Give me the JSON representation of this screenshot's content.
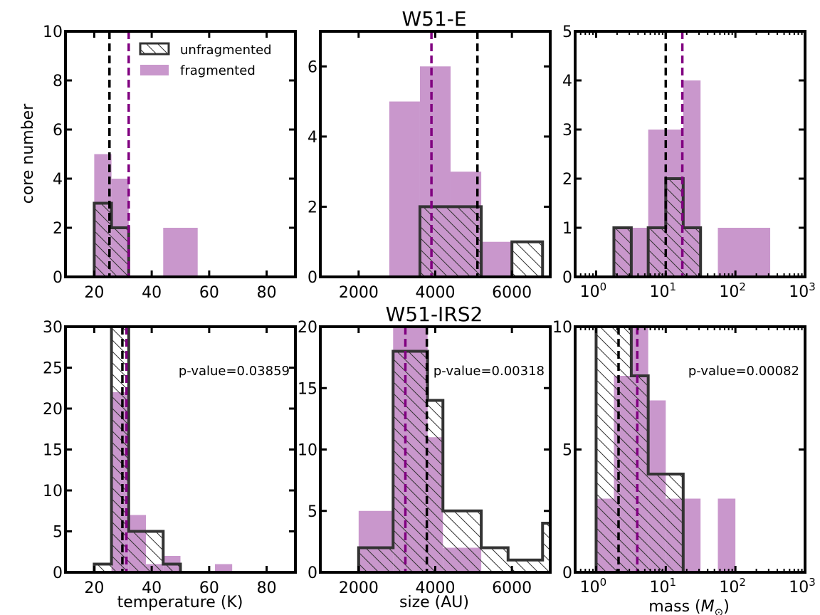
{
  "colors": {
    "fragmented_fill": "#c997cc",
    "unfragmented_edge": "#333333",
    "fragmented_median": "#800080",
    "unfragmented_median": "#000000"
  },
  "legend": {
    "unfragmented": "unfragmented",
    "fragmented": "fragmented"
  },
  "rows": [
    {
      "title": "W51-E",
      "ylabel": "core number"
    },
    {
      "title": "W51-IRS2",
      "ylabel": ""
    }
  ],
  "columns": [
    {
      "xlabel": "temperature (K)"
    },
    {
      "xlabel": "size (AU)"
    },
    {
      "xlabel": "mass ($M_\\odot$)"
    }
  ],
  "chart_data": [
    {
      "id": "w51e-temperature",
      "type": "bar",
      "row": 0,
      "col": 0,
      "xscale": "linear",
      "xlim": [
        10,
        90
      ],
      "ylim": [
        0,
        10
      ],
      "xticks": [
        20,
        40,
        60,
        80
      ],
      "xticklabels": [
        "20",
        "40",
        "60",
        "80"
      ],
      "yticks": [
        0,
        2,
        4,
        6,
        8,
        10
      ],
      "yticklabels": [
        "0",
        "2",
        "4",
        "6",
        "8",
        "10"
      ],
      "show_xticklabels": true,
      "show_legend": true,
      "pvalue": "",
      "series": [
        {
          "name": "fragmented",
          "bins": [
            [
              20,
              26,
              5
            ],
            [
              26,
              32,
              4
            ],
            [
              44,
              56,
              2
            ]
          ]
        },
        {
          "name": "unfragmented",
          "bins": [
            [
              20,
              26,
              3
            ],
            [
              26,
              32,
              2
            ]
          ]
        }
      ],
      "medians": {
        "unfragmented": 25.3,
        "fragmented": 32
      }
    },
    {
      "id": "w51e-size",
      "type": "bar",
      "row": 0,
      "col": 1,
      "xscale": "linear",
      "xlim": [
        1000,
        7000
      ],
      "ylim": [
        0,
        7
      ],
      "xticks": [
        2000,
        4000,
        6000
      ],
      "xticklabels": [
        "2000",
        "4000",
        "6000"
      ],
      "yticks": [
        0,
        2,
        4,
        6
      ],
      "yticklabels": [
        "0",
        "2",
        "4",
        "6"
      ],
      "show_xticklabels": true,
      "show_legend": false,
      "pvalue": "",
      "series": [
        {
          "name": "fragmented",
          "bins": [
            [
              2800,
              3600,
              5
            ],
            [
              3600,
              4400,
              6
            ],
            [
              4400,
              5200,
              3
            ],
            [
              5200,
              6000,
              1
            ]
          ]
        },
        {
          "name": "unfragmented",
          "bins": [
            [
              3600,
              5200,
              2
            ],
            [
              6000,
              6800,
              1
            ]
          ]
        }
      ],
      "medians": {
        "unfragmented": 5100,
        "fragmented": 3900
      }
    },
    {
      "id": "w51e-mass",
      "type": "bar",
      "row": 0,
      "col": 2,
      "xscale": "log",
      "xlim": [
        0.5,
        1000
      ],
      "ylim": [
        0,
        5
      ],
      "xticks": [
        1,
        10,
        100,
        1000
      ],
      "xticklabels": [
        "10^0",
        "10^1",
        "10^2",
        "10^3"
      ],
      "yticks": [
        0,
        1,
        2,
        3,
        4,
        5
      ],
      "yticklabels": [
        "0",
        "1",
        "2",
        "3",
        "4",
        "5"
      ],
      "show_xticklabels": true,
      "show_legend": false,
      "pvalue": "",
      "series": [
        {
          "name": "fragmented",
          "bins": [
            [
              1.8,
              3.2,
              1
            ],
            [
              3.2,
              5.6,
              1
            ],
            [
              5.6,
              17.8,
              3
            ],
            [
              17.8,
              31.6,
              4
            ],
            [
              56,
              316,
              1
            ]
          ]
        },
        {
          "name": "unfragmented",
          "bins": [
            [
              1.8,
              3.2,
              1
            ],
            [
              5.6,
              10,
              1
            ],
            [
              10,
              17.8,
              2
            ],
            [
              17.8,
              31.6,
              1
            ]
          ]
        }
      ],
      "medians": {
        "unfragmented": 10,
        "fragmented": 17.3
      }
    },
    {
      "id": "w51irs2-temperature",
      "type": "bar",
      "row": 1,
      "col": 0,
      "xscale": "linear",
      "xlim": [
        10,
        90
      ],
      "ylim": [
        0,
        30
      ],
      "xticks": [
        20,
        40,
        60,
        80
      ],
      "xticklabels": [
        "20",
        "40",
        "60",
        "80"
      ],
      "yticks": [
        0,
        5,
        10,
        15,
        20,
        25,
        30
      ],
      "yticklabels": [
        "0",
        "5",
        "10",
        "15",
        "20",
        "25",
        "30"
      ],
      "show_xticklabels": true,
      "show_legend": false,
      "pvalue": "p-value=0.03859",
      "series": [
        {
          "name": "fragmented",
          "bins": [
            [
              26,
              32,
              22
            ],
            [
              32,
              38,
              7
            ],
            [
              38,
              44,
              1
            ],
            [
              44,
              50,
              2
            ],
            [
              62,
              68,
              1
            ]
          ]
        },
        {
          "name": "unfragmented",
          "bins": [
            [
              20,
              26,
              1
            ],
            [
              26,
              32,
              30
            ],
            [
              32,
              44,
              5
            ],
            [
              44,
              50,
              1
            ]
          ]
        }
      ],
      "medians": {
        "unfragmented": 29.8,
        "fragmented": 31.2
      }
    },
    {
      "id": "w51irs2-size",
      "type": "bar",
      "row": 1,
      "col": 1,
      "xscale": "linear",
      "xlim": [
        1000,
        7000
      ],
      "ylim": [
        0,
        20
      ],
      "xticks": [
        2000,
        4000,
        6000
      ],
      "xticklabels": [
        "2000",
        "4000",
        "6000"
      ],
      "yticks": [
        0,
        5,
        10,
        15,
        20
      ],
      "yticklabels": [
        "0",
        "5",
        "10",
        "15",
        "20"
      ],
      "show_xticklabels": true,
      "show_legend": false,
      "pvalue": "p-value=0.00318",
      "series": [
        {
          "name": "fragmented",
          "bins": [
            [
              2000,
              2900,
              5
            ],
            [
              2900,
              3800,
              20
            ],
            [
              3800,
              4200,
              11
            ],
            [
              4200,
              5200,
              2
            ]
          ]
        },
        {
          "name": "unfragmented",
          "bins": [
            [
              2000,
              2900,
              2
            ],
            [
              2900,
              3800,
              18
            ],
            [
              3800,
              4200,
              14
            ],
            [
              4200,
              5200,
              5
            ],
            [
              5200,
              5900,
              2
            ],
            [
              5900,
              6800,
              1
            ],
            [
              6800,
              7000,
              4
            ]
          ]
        }
      ],
      "medians": {
        "unfragmented": 3780,
        "fragmented": 3220
      }
    },
    {
      "id": "w51irs2-mass",
      "type": "bar",
      "row": 1,
      "col": 2,
      "xscale": "log",
      "xlim": [
        0.5,
        1000
      ],
      "ylim": [
        0,
        10
      ],
      "xticks": [
        1,
        10,
        100,
        1000
      ],
      "xticklabels": [
        "10^0",
        "10^1",
        "10^2",
        "10^3"
      ],
      "yticks": [
        0,
        5,
        10
      ],
      "yticklabels": [
        "0",
        "5",
        "10"
      ],
      "show_xticklabels": true,
      "show_legend": false,
      "pvalue": "p-value=0.00082",
      "series": [
        {
          "name": "fragmented",
          "bins": [
            [
              1,
              1.8,
              3
            ],
            [
              1.8,
              3.2,
              8
            ],
            [
              3.2,
              5.6,
              10
            ],
            [
              5.6,
              10,
              7
            ],
            [
              10,
              17.8,
              3
            ],
            [
              17.8,
              31.6,
              3
            ],
            [
              56,
              100,
              3
            ]
          ]
        },
        {
          "name": "unfragmented",
          "bins": [
            [
              1,
              3.2,
              10
            ],
            [
              3.2,
              5.6,
              8
            ],
            [
              5.6,
              17.8,
              4
            ]
          ]
        }
      ],
      "medians": {
        "unfragmented": 2.1,
        "fragmented": 3.9
      }
    }
  ]
}
